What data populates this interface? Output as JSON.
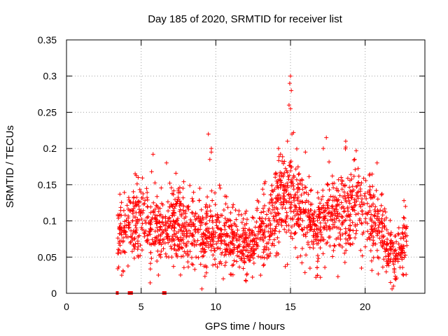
{
  "chart_data": {
    "type": "scatter",
    "title": "Day 185 of 2020, SRMTID for receiver list",
    "xlabel": "GPS time / hours",
    "ylabel": "SRMTID / TECUs",
    "xlim": [
      0,
      24
    ],
    "ylim": [
      0,
      0.35
    ],
    "x_ticks": [
      0,
      5,
      10,
      15,
      20
    ],
    "y_ticks": [
      0,
      0.05,
      0.1,
      0.15,
      0.2,
      0.25,
      0.3,
      0.35
    ],
    "x_tick_labels": [
      "0",
      "5",
      "10",
      "15",
      "20"
    ],
    "y_tick_labels": [
      "0",
      "0.05",
      "0.1",
      "0.15",
      "0.2",
      "0.25",
      "0.3",
      "0.35"
    ],
    "grid": true,
    "marker": "+",
    "color": "#ff0000",
    "trend": [
      [
        3.4,
        0.075
      ],
      [
        3.8,
        0.09
      ],
      [
        4.3,
        0.095
      ],
      [
        5.0,
        0.1
      ],
      [
        5.7,
        0.095
      ],
      [
        6.3,
        0.08
      ],
      [
        7.0,
        0.095
      ],
      [
        8.0,
        0.09
      ],
      [
        9.0,
        0.08
      ],
      [
        9.6,
        0.09
      ],
      [
        10.5,
        0.075
      ],
      [
        11.5,
        0.07
      ],
      [
        12.5,
        0.07
      ],
      [
        13.5,
        0.09
      ],
      [
        14.0,
        0.11
      ],
      [
        14.5,
        0.13
      ],
      [
        15.0,
        0.13
      ],
      [
        15.5,
        0.12
      ],
      [
        16.3,
        0.1
      ],
      [
        17.0,
        0.095
      ],
      [
        17.5,
        0.11
      ],
      [
        18.3,
        0.11
      ],
      [
        19.0,
        0.115
      ],
      [
        19.5,
        0.12
      ],
      [
        20.0,
        0.11
      ],
      [
        20.5,
        0.1
      ],
      [
        21.0,
        0.09
      ],
      [
        21.5,
        0.07
      ],
      [
        22.0,
        0.05
      ],
      [
        22.8,
        0.075
      ]
    ],
    "gaps": [
      [
        6.55,
        6.6
      ]
    ],
    "zero_points": [
      3.4,
      4.2,
      4.35,
      6.5,
      6.6
    ],
    "outliers": [
      [
        15.0,
        0.3
      ],
      [
        14.95,
        0.29
      ],
      [
        15.05,
        0.28
      ],
      [
        14.9,
        0.26
      ],
      [
        15.0,
        0.255
      ],
      [
        9.5,
        0.22
      ],
      [
        9.7,
        0.2
      ],
      [
        9.7,
        0.195
      ],
      [
        9.6,
        0.185
      ],
      [
        5.8,
        0.192
      ],
      [
        15.2,
        0.222
      ],
      [
        15.1,
        0.22
      ],
      [
        17.4,
        0.215
      ],
      [
        18.7,
        0.21
      ],
      [
        18.7,
        0.202
      ],
      [
        14.8,
        0.21
      ],
      [
        6.7,
        0.18
      ],
      [
        4.6,
        0.165
      ],
      [
        4.8,
        0.16
      ],
      [
        5.7,
        0.168
      ],
      [
        14.2,
        0.2
      ],
      [
        16.0,
        0.195
      ],
      [
        17.2,
        0.2
      ],
      [
        19.3,
        0.185
      ],
      [
        20.8,
        0.18
      ],
      [
        21.8,
        0.006
      ],
      [
        21.9,
        0.01
      ],
      [
        21.7,
        0.015
      ],
      [
        22.0,
        0.02
      ],
      [
        12.0,
        0.018
      ],
      [
        10.5,
        0.02
      ],
      [
        13.0,
        0.025
      ],
      [
        17.0,
        0.022
      ],
      [
        3.7,
        0.025
      ],
      [
        3.8,
        0.03
      ],
      [
        16.7,
        0.022
      ],
      [
        16.8,
        0.025
      ],
      [
        22.6,
        0.128
      ],
      [
        22.7,
        0.12
      ],
      [
        7.8,
        0.145
      ]
    ],
    "seed": 185
  }
}
